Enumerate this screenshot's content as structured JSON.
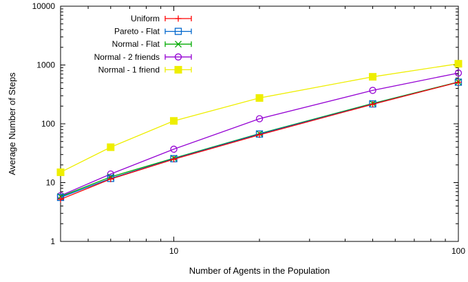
{
  "chart_data": {
    "type": "line",
    "title": "",
    "xlabel": "Number of Agents in the Population",
    "ylabel": "Average Number of Steps",
    "xscale": "log",
    "yscale": "log",
    "xlim": [
      4,
      100
    ],
    "ylim": [
      1,
      10000
    ],
    "x_ticks": [
      {
        "value": 10,
        "label": "10"
      },
      {
        "value": 100,
        "label": "100"
      }
    ],
    "y_ticks": [
      {
        "value": 1,
        "label": "1"
      },
      {
        "value": 10,
        "label": "10"
      },
      {
        "value": 100,
        "label": "100"
      },
      {
        "value": 1000,
        "label": "1000"
      },
      {
        "value": 10000,
        "label": "10000"
      }
    ],
    "grid": false,
    "legend_position": "top-left",
    "x": [
      4,
      6,
      10,
      20,
      50,
      100
    ],
    "series": [
      {
        "name": "Uniform",
        "color": "#ff0000",
        "marker": "plus",
        "values": [
          5.2,
          11.5,
          25,
          65,
          215,
          510
        ]
      },
      {
        "name": "Pareto - Flat",
        "color": "#0066cc",
        "marker": "square-open",
        "values": [
          5.6,
          11.8,
          25.5,
          67,
          218,
          510
        ]
      },
      {
        "name": "Normal - Flat",
        "color": "#00aa00",
        "marker": "x",
        "values": [
          5.8,
          12.5,
          26,
          68,
          222,
          515
        ]
      },
      {
        "name": "Normal - 2 friends",
        "color": "#9400d3",
        "marker": "circle-open",
        "values": [
          6,
          14,
          37,
          122,
          370,
          730
        ]
      },
      {
        "name": "Normal - 1 friend",
        "color": "#eeee00",
        "marker": "square-filled",
        "values": [
          15,
          40,
          112,
          275,
          630,
          1050
        ]
      }
    ]
  }
}
